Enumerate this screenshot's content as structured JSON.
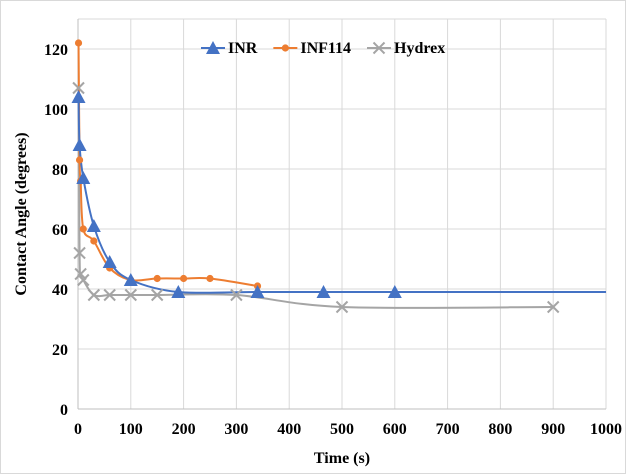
{
  "chart_data": {
    "type": "scatter",
    "title": "",
    "xlabel": "Time (s)",
    "ylabel": "Contact Angle (degrees)",
    "xlim": [
      0,
      1000
    ],
    "ylim": [
      0,
      130
    ],
    "x_ticks": [
      0,
      100,
      200,
      300,
      400,
      500,
      600,
      700,
      800,
      900,
      1000
    ],
    "y_ticks": [
      0,
      20,
      40,
      60,
      80,
      100,
      120
    ],
    "grid": "vertical and horizontal major gridlines",
    "legend_position": "top",
    "series": [
      {
        "name": "INR",
        "color": "#4472c4",
        "marker": "triangle",
        "x": [
          1,
          3,
          10,
          30,
          60,
          100,
          190,
          340,
          465,
          600
        ],
        "y": [
          104,
          88,
          77,
          61,
          49,
          43,
          39,
          39,
          39,
          39
        ],
        "trendline": {
          "x_end": 1000,
          "y_end": 39
        }
      },
      {
        "name": "INF114",
        "color": "#ed7d31",
        "marker": "circle",
        "x": [
          1,
          3,
          5,
          10,
          30,
          60,
          100,
          150,
          200,
          250,
          340
        ],
        "y": [
          122,
          83,
          76,
          60,
          56,
          47,
          43,
          43.5,
          43.5,
          43.5,
          41
        ],
        "trendline": null
      },
      {
        "name": "Hydrex",
        "color": "#a5a5a5",
        "marker": "x",
        "x": [
          1,
          3,
          5,
          10,
          30,
          60,
          100,
          150,
          300,
          500,
          900
        ],
        "y": [
          107,
          52,
          45,
          43,
          38,
          38,
          38,
          38,
          38,
          34,
          34
        ],
        "trendline": null
      }
    ]
  }
}
